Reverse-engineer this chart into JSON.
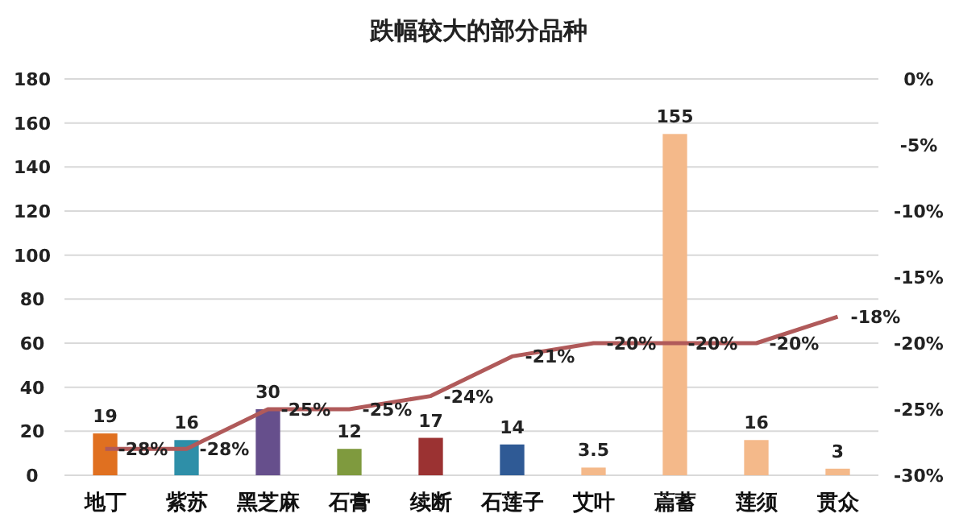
{
  "chart_data": {
    "type": "bar",
    "title": "跌幅较大的部分品种",
    "categories": [
      "地丁",
      "紫苏",
      "黑芝麻",
      "石膏",
      "续断",
      "石莲子",
      "艾叶",
      "萹蓄",
      "莲须",
      "贯众"
    ],
    "series": [
      {
        "colors": [
          "#e07020",
          "#2e8fa8",
          "#664f8c",
          "#7f9a3e",
          "#9b3232",
          "#2f5a95",
          "#f4b98a",
          "#f4b98a",
          "#f4b98a",
          "#f4b98a"
        ],
        "values": [
          19,
          16,
          30,
          12,
          17,
          14,
          3.5,
          155,
          16,
          3
        ],
        "value_labels": [
          "19",
          "16",
          "30",
          "12",
          "17",
          "14",
          "3.5",
          "155",
          "16",
          "3"
        ]
      },
      {
        "type": "line",
        "axis": "y2",
        "color": "#b05a5a",
        "values": [
          -28,
          -28,
          -25,
          -25,
          -24,
          -21,
          -20,
          -20,
          -20,
          -18
        ],
        "value_labels": [
          "-28%",
          "-28%",
          "-25%",
          "-25%",
          "-24%",
          "-21%",
          "-20%",
          "-20%",
          "-20%",
          "-18%"
        ]
      }
    ],
    "ylim": [
      0,
      180
    ],
    "yticks": [
      0,
      20,
      40,
      60,
      80,
      100,
      120,
      140,
      160,
      180
    ],
    "y2lim": [
      -30,
      0
    ],
    "y2ticks": [
      {
        "value": -30,
        "label": "-30%"
      },
      {
        "value": -25,
        "label": "-25%"
      },
      {
        "value": -20,
        "label": "-20%"
      },
      {
        "value": -15,
        "label": "-15%"
      },
      {
        "value": -10,
        "label": "-10%"
      },
      {
        "value": -5,
        "label": "-5%"
      },
      {
        "value": 0,
        "label": "0%"
      }
    ],
    "grid": "y"
  }
}
